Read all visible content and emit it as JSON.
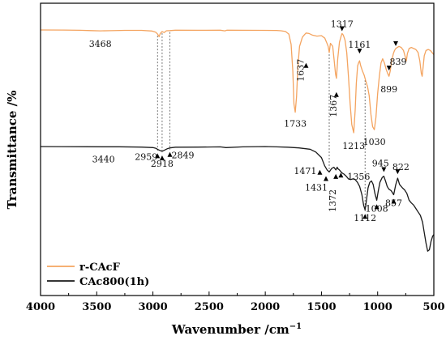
{
  "chart_data": {
    "type": "line",
    "xlabel": "Wavenumber /cm",
    "xlabel_superscript": "−1",
    "ylabel": "Transmittance /%",
    "xlim": [
      4000,
      500
    ],
    "x_reversed": true,
    "x_ticks": [
      4000,
      3500,
      3000,
      2500,
      2000,
      1500,
      1000,
      500
    ],
    "grid": false,
    "legend_position": "bottom-left",
    "series": [
      {
        "name": "r-CAcF",
        "color": "#f4a460",
        "points": [
          [
            4000,
            0.0
          ],
          [
            3800,
            0.1
          ],
          [
            3650,
            0.3
          ],
          [
            3550,
            0.6
          ],
          [
            3468,
            0.9
          ],
          [
            3380,
            0.7
          ],
          [
            3250,
            0.4
          ],
          [
            3100,
            0.4
          ],
          [
            3010,
            1.0
          ],
          [
            2975,
            2.2
          ],
          [
            2959,
            4.0
          ],
          [
            2945,
            6.5
          ],
          [
            2935,
            3.5
          ],
          [
            2918,
            1.5
          ],
          [
            2900,
            2.5
          ],
          [
            2880,
            0.8
          ],
          [
            2849,
            0.6
          ],
          [
            2800,
            0.2
          ],
          [
            2600,
            0.3
          ],
          [
            2400,
            0.2
          ],
          [
            2360,
            0.9
          ],
          [
            2340,
            0.2
          ],
          [
            2200,
            0.3
          ],
          [
            2000,
            0.4
          ],
          [
            1900,
            0.5
          ],
          [
            1860,
            0.8
          ],
          [
            1820,
            1.5
          ],
          [
            1790,
            4.0
          ],
          [
            1770,
            14.0
          ],
          [
            1755,
            40.0
          ],
          [
            1745,
            72.0
          ],
          [
            1733,
            80.0
          ],
          [
            1722,
            65.0
          ],
          [
            1710,
            36.0
          ],
          [
            1695,
            16.0
          ],
          [
            1670,
            7.0
          ],
          [
            1650,
            4.5
          ],
          [
            1637,
            3.0
          ],
          [
            1610,
            3.5
          ],
          [
            1580,
            5.0
          ],
          [
            1540,
            6.0
          ],
          [
            1500,
            5.5
          ],
          [
            1470,
            8.0
          ],
          [
            1455,
            12.0
          ],
          [
            1440,
            16.0
          ],
          [
            1431,
            22.0
          ],
          [
            1420,
            13.0
          ],
          [
            1400,
            16.0
          ],
          [
            1385,
            32.0
          ],
          [
            1375,
            43.0
          ],
          [
            1367,
            47.0
          ],
          [
            1355,
            28.0
          ],
          [
            1340,
            12.0
          ],
          [
            1325,
            6.0
          ],
          [
            1317,
            3.5
          ],
          [
            1305,
            5.0
          ],
          [
            1290,
            10.0
          ],
          [
            1275,
            22.0
          ],
          [
            1260,
            45.0
          ],
          [
            1245,
            72.0
          ],
          [
            1230,
            92.0
          ],
          [
            1213,
            100.0
          ],
          [
            1200,
            78.0
          ],
          [
            1190,
            52.0
          ],
          [
            1178,
            35.0
          ],
          [
            1170,
            32.0
          ],
          [
            1161,
            30.0
          ],
          [
            1150,
            35.0
          ],
          [
            1135,
            40.0
          ],
          [
            1120,
            44.0
          ],
          [
            1105,
            50.0
          ],
          [
            1090,
            55.0
          ],
          [
            1075,
            64.0
          ],
          [
            1060,
            82.0
          ],
          [
            1045,
            94.0
          ],
          [
            1030,
            97.0
          ],
          [
            1015,
            85.0
          ],
          [
            1000,
            62.0
          ],
          [
            985,
            45.0
          ],
          [
            970,
            32.0
          ],
          [
            955,
            28.0
          ],
          [
            940,
            32.0
          ],
          [
            925,
            38.0
          ],
          [
            912,
            42.0
          ],
          [
            899,
            45.0
          ],
          [
            888,
            40.0
          ],
          [
            875,
            30.0
          ],
          [
            860,
            23.0
          ],
          [
            850,
            20.0
          ],
          [
            839,
            18.0
          ],
          [
            825,
            17.0
          ],
          [
            810,
            16.0
          ],
          [
            790,
            17.0
          ],
          [
            770,
            20.0
          ],
          [
            755,
            26.0
          ],
          [
            745,
            30.0
          ],
          [
            735,
            23.0
          ],
          [
            720,
            18.0
          ],
          [
            700,
            17.0
          ],
          [
            680,
            18.0
          ],
          [
            660,
            19.0
          ],
          [
            640,
            22.0
          ],
          [
            625,
            30.0
          ],
          [
            612,
            42.0
          ],
          [
            604,
            45.0
          ],
          [
            595,
            36.0
          ],
          [
            585,
            25.0
          ],
          [
            570,
            20.0
          ],
          [
            550,
            19.0
          ],
          [
            530,
            20.0
          ],
          [
            515,
            22.0
          ],
          [
            500,
            24.0
          ]
        ],
        "peak_labels": [
          {
            "wavenumber": 3468,
            "text": "3468"
          },
          {
            "wavenumber": 1637,
            "text": "1637"
          },
          {
            "wavenumber": 1317,
            "text": "1317"
          },
          {
            "wavenumber": 1367,
            "text": "1367"
          },
          {
            "wavenumber": 1161,
            "text": "1161"
          },
          {
            "wavenumber": 1733,
            "text": "1733"
          },
          {
            "wavenumber": 1213,
            "text": "1213"
          },
          {
            "wavenumber": 1030,
            "text": "1030"
          },
          {
            "wavenumber": 899,
            "text": "899"
          },
          {
            "wavenumber": 839,
            "text": "839"
          }
        ]
      },
      {
        "name": "CAc800(1h)",
        "color": "#1a1a1a",
        "points": [
          [
            4000,
            0.0
          ],
          [
            3800,
            0.1
          ],
          [
            3600,
            0.2
          ],
          [
            3440,
            0.3
          ],
          [
            3300,
            0.4
          ],
          [
            3100,
            0.8
          ],
          [
            3000,
            1.5
          ],
          [
            2975,
            2.5
          ],
          [
            2959,
            4.0
          ],
          [
            2940,
            5.5
          ],
          [
            2918,
            7.0
          ],
          [
            2895,
            5.0
          ],
          [
            2870,
            3.0
          ],
          [
            2849,
            2.0
          ],
          [
            2800,
            1.0
          ],
          [
            2600,
            0.8
          ],
          [
            2400,
            0.5
          ],
          [
            2350,
            1.5
          ],
          [
            2200,
            0.5
          ],
          [
            2000,
            0.0
          ],
          [
            1900,
            0.5
          ],
          [
            1800,
            1.0
          ],
          [
            1700,
            2.0
          ],
          [
            1600,
            4.0
          ],
          [
            1550,
            8.0
          ],
          [
            1500,
            16.0
          ],
          [
            1471,
            28.0
          ],
          [
            1450,
            34.0
          ],
          [
            1431,
            37.0
          ],
          [
            1410,
            32.0
          ],
          [
            1390,
            30.0
          ],
          [
            1372,
            34.0
          ],
          [
            1360,
            30.0
          ],
          [
            1356,
            32.0
          ],
          [
            1340,
            34.0
          ],
          [
            1320,
            38.0
          ],
          [
            1300,
            40.0
          ],
          [
            1280,
            43.0
          ],
          [
            1260,
            47.0
          ],
          [
            1240,
            48.0
          ],
          [
            1220,
            47.0
          ],
          [
            1200,
            48.0
          ],
          [
            1180,
            52.0
          ],
          [
            1160,
            58.0
          ],
          [
            1140,
            70.0
          ],
          [
            1125,
            85.0
          ],
          [
            1112,
            92.0
          ],
          [
            1100,
            78.0
          ],
          [
            1085,
            60.0
          ],
          [
            1070,
            52.0
          ],
          [
            1055,
            50.0
          ],
          [
            1040,
            55.0
          ],
          [
            1025,
            68.0
          ],
          [
            1008,
            78.0
          ],
          [
            995,
            65.0
          ],
          [
            980,
            52.0
          ],
          [
            960,
            45.0
          ],
          [
            945,
            43.0
          ],
          [
            930,
            50.0
          ],
          [
            915,
            58.0
          ],
          [
            900,
            62.0
          ],
          [
            880,
            64.0
          ],
          [
            857,
            70.0
          ],
          [
            840,
            56.0
          ],
          [
            822,
            46.0
          ],
          [
            805,
            55.0
          ],
          [
            780,
            60.0
          ],
          [
            760,
            63.0
          ],
          [
            740,
            68.0
          ],
          [
            720,
            78.0
          ],
          [
            700,
            82.0
          ],
          [
            680,
            85.0
          ],
          [
            660,
            90.0
          ],
          [
            640,
            95.0
          ],
          [
            620,
            100.0
          ],
          [
            600,
            110.0
          ],
          [
            585,
            125.0
          ],
          [
            570,
            140.0
          ],
          [
            555,
            152.0
          ],
          [
            540,
            150.0
          ],
          [
            525,
            138.0
          ],
          [
            510,
            130.0
          ],
          [
            500,
            128.0
          ]
        ],
        "peak_labels": [
          {
            "wavenumber": 3440,
            "text": "3440"
          },
          {
            "wavenumber": 2959,
            "text": "2959"
          },
          {
            "wavenumber": 2918,
            "text": "2918"
          },
          {
            "wavenumber": 2849,
            "text": "2849"
          },
          {
            "wavenumber": 1471,
            "text": "1471"
          },
          {
            "wavenumber": 1431,
            "text": "1431"
          },
          {
            "wavenumber": 1372,
            "text": "1372"
          },
          {
            "wavenumber": 1356,
            "text": "1356"
          },
          {
            "wavenumber": 1112,
            "text": "1112"
          },
          {
            "wavenumber": 1008,
            "text": "1008"
          },
          {
            "wavenumber": 945,
            "text": "945"
          },
          {
            "wavenumber": 857,
            "text": "857"
          },
          {
            "wavenumber": 822,
            "text": "822"
          }
        ]
      }
    ],
    "reference_lines": [
      2959,
      2918,
      2849,
      1431,
      1112
    ]
  }
}
